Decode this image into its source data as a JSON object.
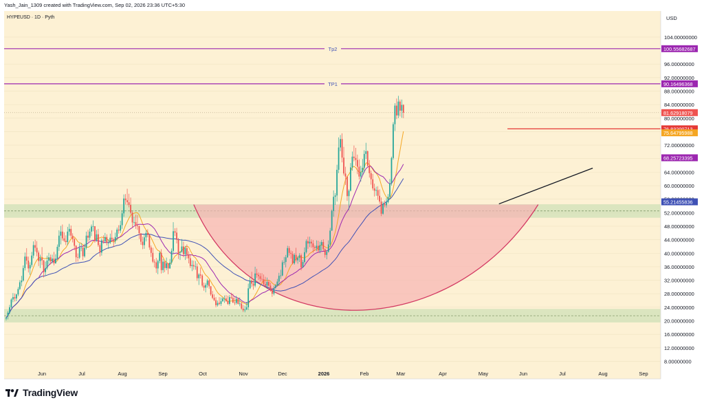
{
  "header": {
    "credit": "Yash_Jain_1309 created with TradingView.com, Sep 02, 2026 23:36 UTC+5:30"
  },
  "chart_data": {
    "type": "candlestick",
    "symbol_label": "HYPEUSD · 1D · Pyth",
    "currency": "USD",
    "colors": {
      "background": "#fdf1d4",
      "up": "#26a69a",
      "down": "#ef5350",
      "cup_fill": "#f7b3b3",
      "zone_fill": "#cfe0b8"
    },
    "y_range": [
      4,
      110
    ],
    "y_ticks": [
      8,
      12,
      16,
      20,
      24,
      28,
      32,
      36,
      40,
      44,
      48,
      52,
      56,
      60,
      64,
      68,
      72,
      76,
      80,
      84,
      88,
      92,
      96,
      104
    ],
    "y_tick_labels": [
      "8.00000000",
      "12.00000000",
      "16.00000000",
      "20.00000000",
      "24.00000000",
      "28.00000000",
      "32.00000000",
      "36.00000000",
      "40.00000000",
      "44.00000000",
      "48.00000000",
      "52.00000000",
      "56.00000000",
      "60.00000000",
      "64.00000000",
      "68.00000000",
      "72.00000000",
      "76.00000000",
      "80.00000000",
      "84.00000000",
      "88.00000000",
      "92.00000000",
      "96.00000000",
      "104.00000000"
    ],
    "x_labels": [
      "Jun",
      "Jul",
      "Aug",
      "Sep",
      "Oct",
      "Nov",
      "Dec",
      "2026",
      "Feb",
      "Mar",
      "Apr",
      "May",
      "Jun",
      "Jul",
      "Aug",
      "Sep"
    ],
    "candles": [
      [
        20.6,
        21.2,
        20.1,
        20.9
      ],
      [
        21.5,
        22.9,
        20.4,
        22.4
      ],
      [
        22.4,
        24.7,
        22.0,
        24.0
      ],
      [
        24.0,
        26.7,
        23.8,
        26.3
      ],
      [
        26.3,
        28.2,
        25.5,
        27.0
      ],
      [
        27.0,
        28.1,
        25.7,
        26.6
      ],
      [
        26.6,
        28.0,
        25.8,
        27.8
      ],
      [
        27.8,
        30.0,
        27.3,
        29.4
      ],
      [
        29.4,
        32.0,
        29.1,
        31.4
      ],
      [
        31.4,
        33.3,
        30.2,
        31.9
      ],
      [
        31.9,
        36.4,
        31.6,
        35.6
      ],
      [
        35.6,
        40.2,
        34.9,
        39.0
      ],
      [
        39.0,
        41.5,
        36.7,
        37.8
      ],
      [
        37.8,
        39.0,
        34.3,
        35.5
      ],
      [
        35.5,
        37.3,
        33.6,
        36.5
      ],
      [
        36.5,
        40.4,
        35.9,
        39.3
      ],
      [
        39.3,
        43.5,
        38.5,
        42.4
      ],
      [
        42.4,
        44.0,
        40.5,
        41.6
      ],
      [
        41.6,
        43.6,
        39.1,
        40.2
      ],
      [
        40.2,
        40.8,
        36.2,
        37.7
      ],
      [
        37.7,
        39.6,
        35.6,
        38.6
      ],
      [
        38.6,
        41.8,
        36.5,
        37.9
      ],
      [
        37.9,
        38.0,
        32.8,
        34.4
      ],
      [
        34.4,
        37.5,
        33.5,
        35.6
      ],
      [
        35.6,
        39.3,
        35.1,
        37.8
      ],
      [
        37.8,
        40.1,
        36.7,
        38.8
      ],
      [
        38.8,
        39.6,
        36.7,
        37.6
      ],
      [
        37.6,
        39.6,
        37.0,
        38.4
      ],
      [
        38.4,
        40.4,
        36.4,
        37.0
      ],
      [
        37.0,
        39.7,
        36.9,
        38.4
      ],
      [
        38.4,
        42.6,
        38.0,
        41.9
      ],
      [
        41.9,
        46.8,
        40.7,
        45.2
      ],
      [
        45.2,
        48.1,
        42.6,
        46.4
      ],
      [
        46.4,
        48.5,
        43.7,
        44.4
      ],
      [
        44.4,
        46.2,
        43.3,
        43.7
      ],
      [
        43.7,
        45.3,
        42.4,
        43.3
      ],
      [
        43.3,
        47.8,
        42.4,
        46.4
      ],
      [
        46.4,
        48.7,
        45.2,
        47.2
      ],
      [
        47.2,
        48.2,
        44.5,
        45.2
      ],
      [
        45.2,
        45.9,
        43.2,
        44.2
      ],
      [
        44.2,
        44.5,
        40.9,
        42.2
      ],
      [
        42.2,
        42.4,
        37.4,
        38.8
      ],
      [
        38.8,
        39.9,
        37.5,
        38.7
      ],
      [
        38.7,
        42.9,
        38.3,
        41.6
      ],
      [
        41.6,
        43.0,
        40.6,
        41.7
      ],
      [
        41.7,
        42.4,
        38.0,
        39.1
      ],
      [
        39.1,
        42.8,
        38.7,
        41.6
      ],
      [
        41.6,
        46.4,
        41.1,
        45.2
      ],
      [
        45.2,
        46.9,
        43.4,
        44.6
      ],
      [
        44.6,
        47.3,
        43.8,
        46.4
      ],
      [
        46.4,
        48.5,
        45.1,
        47.9
      ],
      [
        47.9,
        49.7,
        46.5,
        48.0
      ],
      [
        48.0,
        48.0,
        43.1,
        43.7
      ],
      [
        43.7,
        46.9,
        43.4,
        45.6
      ],
      [
        45.6,
        47.2,
        41.9,
        42.4
      ],
      [
        42.4,
        43.0,
        39.0,
        40.2
      ],
      [
        40.2,
        44.4,
        39.3,
        43.8
      ],
      [
        43.8,
        45.3,
        42.8,
        43.5
      ],
      [
        43.5,
        46.0,
        42.9,
        44.8
      ],
      [
        44.8,
        45.6,
        42.3,
        43.1
      ],
      [
        43.1,
        44.1,
        41.3,
        43.1
      ],
      [
        43.1,
        45.8,
        42.7,
        44.6
      ],
      [
        44.6,
        46.8,
        43.3,
        44.1
      ],
      [
        44.1,
        44.6,
        41.8,
        43.6
      ],
      [
        43.6,
        46.1,
        42.8,
        44.8
      ],
      [
        44.8,
        47.6,
        43.8,
        47.0
      ],
      [
        47.0,
        48.3,
        45.8,
        46.7
      ],
      [
        46.7,
        49.6,
        46.0,
        48.3
      ],
      [
        48.3,
        52.5,
        47.2,
        51.8
      ],
      [
        51.8,
        57.4,
        50.8,
        56.2
      ],
      [
        56.2,
        57.5,
        54.4,
        55.7
      ],
      [
        55.7,
        59.1,
        54.2,
        55.1
      ],
      [
        55.1,
        57.6,
        53.6,
        54.3
      ],
      [
        54.3,
        56.5,
        51.5,
        52.0
      ],
      [
        52.0,
        52.4,
        47.6,
        49.1
      ],
      [
        49.1,
        50.8,
        48.4,
        49.2
      ],
      [
        49.2,
        51.4,
        47.2,
        48.2
      ],
      [
        48.2,
        51.3,
        46.9,
        48.0
      ],
      [
        48.0,
        48.2,
        44.2,
        45.9
      ],
      [
        45.9,
        45.9,
        42.5,
        43.4
      ],
      [
        43.4,
        44.9,
        41.2,
        42.4
      ],
      [
        42.4,
        45.5,
        41.3,
        44.7
      ],
      [
        44.7,
        46.8,
        43.5,
        46.0
      ],
      [
        46.0,
        47.1,
        44.7,
        45.4
      ],
      [
        45.4,
        45.6,
        41.0,
        41.7
      ],
      [
        41.7,
        42.3,
        38.9,
        40.1
      ],
      [
        40.1,
        41.6,
        37.1,
        37.5
      ],
      [
        37.5,
        38.2,
        35.8,
        37.3
      ],
      [
        37.3,
        38.6,
        34.2,
        35.5
      ],
      [
        35.5,
        38.1,
        33.8,
        37.7
      ],
      [
        37.7,
        40.6,
        37.0,
        40.1
      ],
      [
        40.1,
        41.2,
        34.0,
        35.0
      ],
      [
        35.0,
        38.3,
        34.2,
        37.5
      ],
      [
        37.5,
        37.7,
        34.4,
        35.6
      ],
      [
        35.6,
        38.7,
        35.0,
        37.0
      ],
      [
        37.0,
        37.1,
        33.8,
        35.5
      ],
      [
        35.5,
        38.3,
        35.4,
        37.2
      ],
      [
        37.2,
        41.4,
        36.6,
        40.7
      ],
      [
        40.7,
        49.2,
        39.9,
        46.5
      ],
      [
        46.5,
        47.4,
        45.1,
        46.1
      ],
      [
        46.1,
        47.5,
        42.9,
        44.0
      ],
      [
        44.0,
        44.5,
        38.3,
        40.1
      ],
      [
        40.1,
        40.6,
        38.0,
        40.4
      ],
      [
        40.4,
        44.2,
        40.1,
        42.0
      ],
      [
        42.0,
        43.4,
        38.8,
        39.7
      ],
      [
        39.7,
        42.2,
        38.0,
        41.5
      ],
      [
        41.5,
        42.6,
        38.4,
        39.6
      ],
      [
        39.6,
        40.6,
        37.0,
        38.5
      ],
      [
        38.5,
        39.6,
        35.6,
        36.2
      ],
      [
        36.2,
        37.9,
        34.7,
        36.5
      ],
      [
        36.5,
        37.8,
        35.1,
        36.1
      ],
      [
        36.1,
        37.7,
        35.1,
        36.1
      ],
      [
        36.1,
        37.0,
        31.8,
        32.6
      ],
      [
        32.6,
        34.1,
        30.6,
        33.7
      ],
      [
        33.7,
        35.8,
        32.5,
        33.4
      ],
      [
        33.4,
        33.8,
        29.9,
        30.4
      ],
      [
        30.4,
        31.3,
        28.9,
        29.8
      ],
      [
        29.8,
        31.2,
        28.4,
        30.6
      ],
      [
        30.6,
        32.4,
        29.8,
        31.9
      ],
      [
        31.9,
        32.2,
        29.5,
        30.2
      ],
      [
        30.2,
        30.3,
        27.4,
        27.8
      ],
      [
        27.8,
        28.8,
        26.4,
        26.8
      ],
      [
        26.8,
        27.8,
        25.8,
        26.1
      ],
      [
        26.1,
        27.0,
        24.0,
        24.6
      ],
      [
        24.6,
        26.0,
        24.2,
        25.3
      ],
      [
        25.3,
        27.0,
        24.6,
        25.0
      ],
      [
        25.0,
        26.9,
        24.4,
        25.8
      ],
      [
        25.8,
        27.0,
        25.6,
        26.6
      ],
      [
        26.6,
        27.5,
        25.3,
        26.6
      ],
      [
        26.6,
        27.6,
        25.6,
        25.8
      ],
      [
        25.8,
        27.4,
        24.7,
        25.0
      ],
      [
        25.0,
        27.6,
        24.5,
        27.0
      ],
      [
        27.0,
        28.3,
        26.4,
        26.8
      ],
      [
        26.8,
        28.0,
        25.2,
        25.4
      ],
      [
        25.4,
        26.9,
        24.6,
        25.3
      ],
      [
        25.3,
        27.4,
        24.8,
        26.5
      ],
      [
        26.5,
        26.9,
        24.8,
        25.0
      ],
      [
        25.0,
        26.9,
        24.3,
        25.1
      ],
      [
        25.1,
        25.7,
        23.3,
        23.6
      ],
      [
        23.6,
        24.7,
        22.6,
        23.1
      ],
      [
        23.1,
        24.5,
        22.5,
        23.3
      ],
      [
        23.3,
        25.6,
        23.2,
        24.0
      ],
      [
        24.0,
        31.0,
        23.2,
        29.6
      ],
      [
        29.6,
        33.0,
        29.4,
        31.9
      ],
      [
        31.9,
        34.5,
        30.0,
        31.0
      ],
      [
        31.0,
        32.3,
        29.2,
        30.4
      ],
      [
        30.4,
        36.0,
        29.9,
        34.0
      ],
      [
        34.0,
        35.4,
        32.7,
        33.6
      ],
      [
        33.6,
        34.3,
        32.1,
        33.2
      ],
      [
        33.2,
        34.1,
        31.6,
        32.4
      ],
      [
        32.4,
        34.1,
        31.6,
        32.3
      ],
      [
        32.3,
        33.7,
        30.2,
        30.8
      ],
      [
        30.8,
        33.0,
        30.0,
        30.4
      ],
      [
        30.4,
        32.8,
        29.4,
        31.5
      ],
      [
        31.5,
        32.2,
        30.1,
        30.4
      ],
      [
        30.4,
        31.3,
        28.6,
        28.9
      ],
      [
        28.9,
        29.8,
        27.1,
        28.0
      ],
      [
        28.0,
        30.4,
        27.5,
        29.7
      ],
      [
        29.7,
        30.9,
        29.5,
        30.5
      ],
      [
        30.5,
        32.4,
        30.1,
        31.6
      ],
      [
        31.6,
        34.2,
        30.4,
        33.3
      ],
      [
        33.3,
        35.1,
        32.4,
        33.4
      ],
      [
        33.4,
        37.9,
        33.2,
        37.3
      ],
      [
        37.3,
        38.9,
        36.6,
        37.4
      ],
      [
        37.4,
        39.5,
        35.8,
        38.8
      ],
      [
        38.8,
        42.2,
        38.6,
        41.5
      ],
      [
        41.5,
        42.1,
        39.3,
        40.1
      ],
      [
        40.1,
        40.8,
        38.4,
        39.8
      ],
      [
        39.8,
        40.6,
        36.7,
        37.0
      ],
      [
        37.0,
        40.0,
        36.6,
        39.5
      ],
      [
        39.5,
        41.6,
        37.3,
        37.9
      ],
      [
        37.9,
        39.1,
        36.9,
        38.6
      ],
      [
        38.6,
        40.0,
        37.4,
        39.4
      ],
      [
        39.4,
        39.9,
        34.9,
        35.8
      ],
      [
        35.8,
        38.0,
        35.7,
        37.4
      ],
      [
        37.4,
        41.7,
        36.9,
        40.3
      ],
      [
        40.3,
        44.1,
        39.9,
        43.6
      ],
      [
        43.6,
        44.9,
        41.3,
        42.9
      ],
      [
        42.9,
        44.9,
        41.8,
        43.4
      ],
      [
        43.4,
        44.1,
        41.6,
        42.9
      ],
      [
        42.9,
        43.9,
        40.2,
        41.8
      ],
      [
        41.8,
        42.3,
        40.7,
        41.5
      ],
      [
        41.5,
        43.8,
        40.6,
        42.2
      ],
      [
        42.2,
        43.7,
        40.3,
        40.8
      ],
      [
        40.8,
        43.4,
        40.0,
        42.4
      ],
      [
        42.4,
        43.9,
        40.7,
        43.3
      ],
      [
        43.3,
        44.1,
        40.6,
        41.2
      ],
      [
        41.2,
        41.4,
        38.7,
        39.5
      ],
      [
        39.5,
        40.9,
        38.2,
        40.4
      ],
      [
        40.4,
        43.8,
        40.2,
        42.6
      ],
      [
        42.6,
        47.5,
        41.9,
        46.7
      ],
      [
        46.7,
        52.9,
        46.6,
        52.5
      ],
      [
        52.5,
        58.6,
        50.8,
        56.7
      ],
      [
        56.7,
        57.8,
        54.3,
        57.1
      ],
      [
        57.1,
        66.2,
        55.3,
        64.7
      ],
      [
        64.7,
        74.3,
        63.7,
        71.3
      ],
      [
        71.3,
        75.0,
        70.2,
        73.8
      ],
      [
        73.8,
        75.5,
        66.9,
        68.3
      ],
      [
        68.3,
        71.5,
        63.0,
        63.6
      ],
      [
        63.6,
        65.6,
        60.2,
        62.7
      ],
      [
        62.7,
        62.7,
        55.5,
        56.9
      ],
      [
        56.9,
        58.9,
        52.8,
        58.5
      ],
      [
        58.5,
        66.7,
        58.3,
        65.4
      ],
      [
        65.4,
        70.1,
        64.4,
        68.6
      ],
      [
        68.6,
        71.9,
        67.2,
        68.2
      ],
      [
        68.2,
        71.2,
        65.9,
        67.6
      ],
      [
        67.6,
        69.2,
        63.4,
        65.6
      ],
      [
        65.6,
        67.8,
        61.8,
        62.7
      ],
      [
        62.7,
        65.9,
        61.2,
        64.0
      ],
      [
        64.0,
        67.9,
        63.1,
        65.3
      ],
      [
        65.3,
        70.5,
        63.8,
        69.4
      ],
      [
        69.4,
        72.7,
        67.9,
        70.2
      ],
      [
        70.2,
        70.4,
        65.6,
        65.9
      ],
      [
        65.9,
        67.6,
        62.4,
        63.7
      ],
      [
        63.7,
        64.5,
        60.3,
        61.9
      ],
      [
        61.9,
        63.5,
        58.6,
        59.2
      ],
      [
        59.2,
        60.6,
        56.8,
        58.5
      ],
      [
        58.5,
        59.7,
        57.0,
        58.7
      ],
      [
        58.7,
        59.8,
        55.8,
        57.0
      ],
      [
        57.0,
        58.9,
        54.6,
        55.3
      ],
      [
        55.3,
        56.5,
        51.0,
        51.7
      ],
      [
        51.7,
        55.3,
        51.4,
        54.6
      ],
      [
        54.6,
        55.6,
        53.6,
        54.2
      ],
      [
        54.2,
        56.3,
        53.5,
        55.1
      ],
      [
        55.1,
        57.5,
        54.7,
        56.7
      ],
      [
        56.7,
        62.0,
        56.1,
        60.7
      ],
      [
        60.7,
        68.6,
        60.0,
        68.2
      ],
      [
        68.2,
        78.8,
        67.7,
        78.2
      ],
      [
        78.2,
        84.4,
        76.2,
        83.7
      ],
      [
        83.7,
        85.8,
        79.7,
        80.8
      ],
      [
        80.8,
        86.6,
        80.0,
        84.9
      ],
      [
        84.9,
        85.5,
        80.5,
        82.2
      ],
      [
        82.2,
        85.5,
        80.1,
        83.9
      ],
      [
        83.9,
        84.1,
        80.0,
        81.6
      ]
    ],
    "horizontal_lines": [
      {
        "label": "Tp2",
        "value": 100.55682687,
        "color": "#9c27b0"
      },
      {
        "label": "TP1",
        "value": 90.16496368,
        "color": "#9c27b0"
      },
      {
        "label": "",
        "value": 76.83200713,
        "color": "#e53935"
      }
    ],
    "price_tags": [
      {
        "text": "100.55682687",
        "value": 100.55682687,
        "color": "#9c27b0"
      },
      {
        "text": "90.16496368",
        "value": 90.16496368,
        "color": "#9c27b0"
      },
      {
        "text": "81.62918079",
        "value": 81.62918079,
        "color": "#ef5350"
      },
      {
        "text": "76.83200713",
        "value": 76.83200713,
        "color": "#e53935"
      },
      {
        "text": "75.64795988",
        "value": 75.64795988,
        "color": "#f5a623"
      },
      {
        "text": "68.25723395",
        "value": 68.25723395,
        "color": "#9c27b0"
      },
      {
        "text": "55.21455836",
        "value": 55.21455836,
        "color": "#3f51b5"
      }
    ],
    "moving_averages": [
      {
        "period": 10,
        "color": "#f5a623",
        "last": 75.64795988
      },
      {
        "period": 20,
        "color": "#9c27b0",
        "last": 68.25723395
      },
      {
        "period": 50,
        "color": "#3f51b5",
        "last": 55.21455836
      }
    ],
    "zones": [
      {
        "from": 50.5,
        "to": 54.5,
        "dashed_mid": 52.5,
        "color": "#cfe0b8"
      },
      {
        "from": 19.5,
        "to": 23.5,
        "dashed_mid": 21.5,
        "color": "#cfe0b8"
      }
    ]
  }
}
